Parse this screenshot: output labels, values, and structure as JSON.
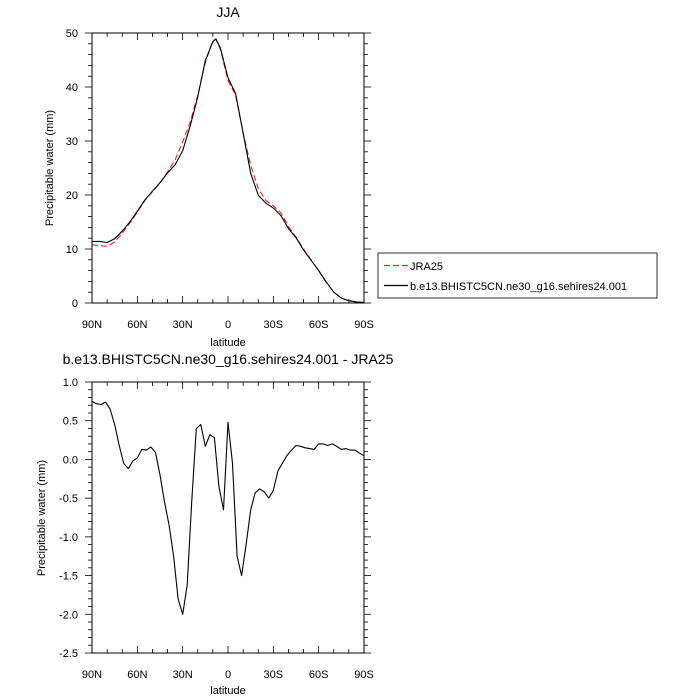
{
  "chart_data": [
    {
      "type": "line",
      "title": "JJA",
      "xlabel": "latitude",
      "ylabel": "Precipitable water (mm)",
      "xlim": [
        90,
        -90
      ],
      "ylim": [
        0,
        50
      ],
      "xticks": [
        90,
        60,
        30,
        0,
        -30,
        -60,
        -90
      ],
      "xtick_labels": [
        "90N",
        "60N",
        "30N",
        "0",
        "30S",
        "60S",
        "90S"
      ],
      "yticks": [
        0,
        10,
        20,
        30,
        40,
        50
      ],
      "ytick_labels": [
        "0",
        "10",
        "20",
        "30",
        "40",
        "50"
      ],
      "grid": false,
      "legend_position": "right",
      "series": [
        {
          "name": "JRA25",
          "color": "#e8241c",
          "dashed": true,
          "x": [
            90,
            85,
            80,
            75,
            70,
            65,
            60,
            55,
            50,
            45,
            40,
            35,
            30,
            25,
            20,
            15,
            10,
            8,
            5,
            0,
            -5,
            -10,
            -15,
            -20,
            -25,
            -30,
            -35,
            -40,
            -45,
            -50,
            -55,
            -60,
            -65,
            -70,
            -75,
            -80,
            -85,
            -90
          ],
          "y": [
            10.8,
            10.6,
            10.5,
            11.3,
            12.9,
            14.8,
            16.8,
            19.0,
            20.6,
            22.2,
            24.3,
            26.5,
            29.8,
            33.5,
            38.5,
            44.5,
            48.6,
            48.8,
            47.0,
            41.2,
            38.5,
            31.5,
            25.5,
            21.2,
            19.0,
            18.0,
            16.7,
            14.2,
            12.2,
            10.0,
            8.0,
            6.0,
            3.8,
            2.0,
            0.9,
            0.4,
            0.2,
            0.1
          ]
        },
        {
          "name": "b.e13.BHISTC5CN.ne30_g16.sehires24.001",
          "color": "#000000",
          "dashed": false,
          "x": [
            90,
            85,
            80,
            75,
            70,
            65,
            60,
            55,
            50,
            45,
            40,
            35,
            30,
            25,
            20,
            15,
            10,
            8,
            5,
            0,
            -5,
            -10,
            -15,
            -20,
            -25,
            -30,
            -35,
            -40,
            -45,
            -50,
            -55,
            -60,
            -65,
            -70,
            -75,
            -80,
            -85,
            -90
          ],
          "y": [
            11.4,
            11.4,
            11.2,
            11.9,
            13.3,
            15.0,
            17.0,
            19.1,
            20.7,
            22.3,
            24.1,
            25.6,
            28.2,
            32.8,
            38.2,
            44.9,
            48.4,
            48.9,
            47.2,
            41.7,
            38.8,
            31.5,
            24.0,
            20.0,
            18.5,
            17.6,
            16.2,
            13.8,
            12.1,
            9.8,
            7.9,
            6.0,
            3.9,
            2.0,
            0.9,
            0.4,
            0.2,
            0.1
          ]
        }
      ]
    },
    {
      "type": "line",
      "title": "b.e13.BHISTC5CN.ne30_g16.sehires24.001 - JRA25",
      "xlabel": "latitude",
      "ylabel": "Precipitable water (mm)",
      "xlim": [
        90,
        -90
      ],
      "ylim": [
        -2.5,
        1.0
      ],
      "xticks": [
        90,
        60,
        30,
        0,
        -30,
        -60,
        -90
      ],
      "xtick_labels": [
        "90N",
        "60N",
        "30N",
        "0",
        "30S",
        "60S",
        "90S"
      ],
      "yticks": [
        1.0,
        0.5,
        0.0,
        -0.5,
        -1.0,
        -1.5,
        -2.0,
        -2.5
      ],
      "ytick_labels": [
        "1.0",
        "0.5",
        "0.0",
        "-0.5",
        "-1.0",
        "-1.5",
        "-2.0",
        "-2.5"
      ],
      "grid": false,
      "series": [
        {
          "color": "#000000",
          "dashed": false,
          "x": [
            90,
            87,
            84,
            81,
            78,
            75,
            72,
            69,
            66,
            63,
            60,
            57,
            54,
            51,
            48,
            45,
            42,
            39,
            36,
            33,
            30,
            27,
            24,
            21,
            18,
            15,
            12,
            9,
            6,
            3,
            0,
            -3,
            -6,
            -9,
            -12,
            -15,
            -18,
            -21,
            -24,
            -27,
            -30,
            -33,
            -36,
            -39,
            -42,
            -45,
            -48,
            -51,
            -54,
            -57,
            -60,
            -63,
            -66,
            -69,
            -72,
            -75,
            -78,
            -81,
            -84,
            -87,
            -90
          ],
          "y": [
            0.75,
            0.72,
            0.71,
            0.74,
            0.65,
            0.45,
            0.18,
            -0.05,
            -0.12,
            -0.02,
            0.02,
            0.13,
            0.12,
            0.16,
            0.09,
            -0.2,
            -0.55,
            -0.85,
            -1.25,
            -1.8,
            -2.0,
            -1.62,
            -0.55,
            0.4,
            0.45,
            0.17,
            0.32,
            0.28,
            -0.35,
            -0.65,
            0.48,
            -0.05,
            -1.25,
            -1.5,
            -1.1,
            -0.65,
            -0.43,
            -0.38,
            -0.42,
            -0.5,
            -0.4,
            -0.15,
            -0.05,
            0.05,
            0.12,
            0.18,
            0.17,
            0.15,
            0.14,
            0.13,
            0.2,
            0.2,
            0.18,
            0.2,
            0.17,
            0.13,
            0.14,
            0.12,
            0.12,
            0.08,
            0.05
          ]
        }
      ]
    }
  ]
}
